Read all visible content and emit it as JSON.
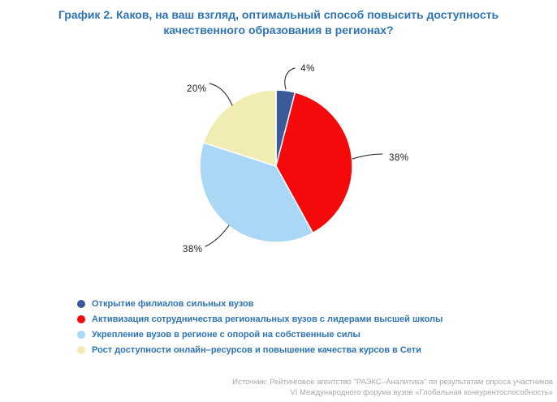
{
  "chart_data": {
    "type": "pie",
    "title": "График 2. Каков, на ваш взгляд, оптимальный способ повысить доступность качественного образования в регионах?",
    "title_lines": [
      "График 2. Каков, на ваш взгляд, оптимальный способ повысить доступность",
      "качественного образования в регионах?"
    ],
    "labels": [
      "Открытие филиалов сильных вузов",
      "Активизация сотрудничества региональных вузов с лидерами высшей школы",
      "Укрепление вузов в регионе с опорой на собственные силы",
      "Рост доступности онлайн–ресурсов и повышение качества курсов в Сети"
    ],
    "values": [
      4,
      38,
      38,
      20
    ],
    "value_labels": [
      "4%",
      "38%",
      "38%",
      "20%"
    ],
    "colors": [
      "#3B5A9A",
      "#F40A0A",
      "#A9D7F5",
      "#F1EDB2"
    ],
    "start_angle": "12-oclock",
    "direction": "clockwise",
    "legend_position": "bottom-left",
    "title_color": "#2E74B5",
    "label_color": "#1A1A1A",
    "source": "Источник: Рейтинговое агентство \"РАЭКС–Аналитика\" по результатам опроса участников VI Международного форума вузов «Глобальная конкурентоспособность»"
  },
  "footer": {
    "line1": "Источник: Рейтинговое агентство \"РАЭКС–Аналитика\" по результатам опроса участников",
    "line2": "VI Международного форума вузов «Глобальная конкурентоспособность»"
  }
}
